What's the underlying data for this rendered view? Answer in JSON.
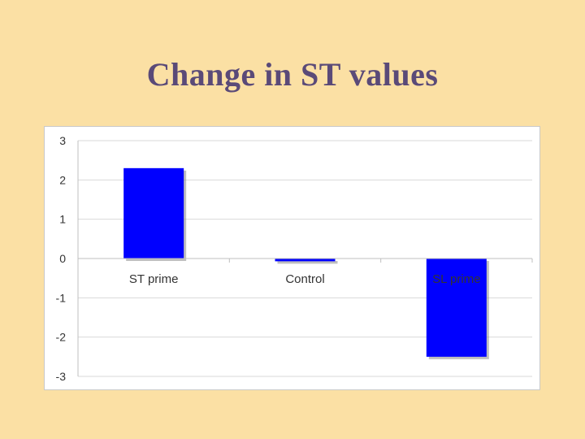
{
  "slide": {
    "title": "Change in ST values"
  },
  "chart_data": {
    "type": "bar",
    "title": "",
    "xlabel": "",
    "ylabel": "",
    "categories": [
      "ST prime",
      "Control",
      "SL prime"
    ],
    "values": [
      2.3,
      -0.07,
      -2.5
    ],
    "ylim": [
      -3,
      3
    ],
    "yticks": [
      3,
      2,
      1,
      0,
      -1,
      -2,
      -3
    ],
    "grid": true,
    "bar_color": "#0000ff",
    "bar_shadow_color": "#8a8a8a",
    "axis_color": "#bfbfbf"
  }
}
